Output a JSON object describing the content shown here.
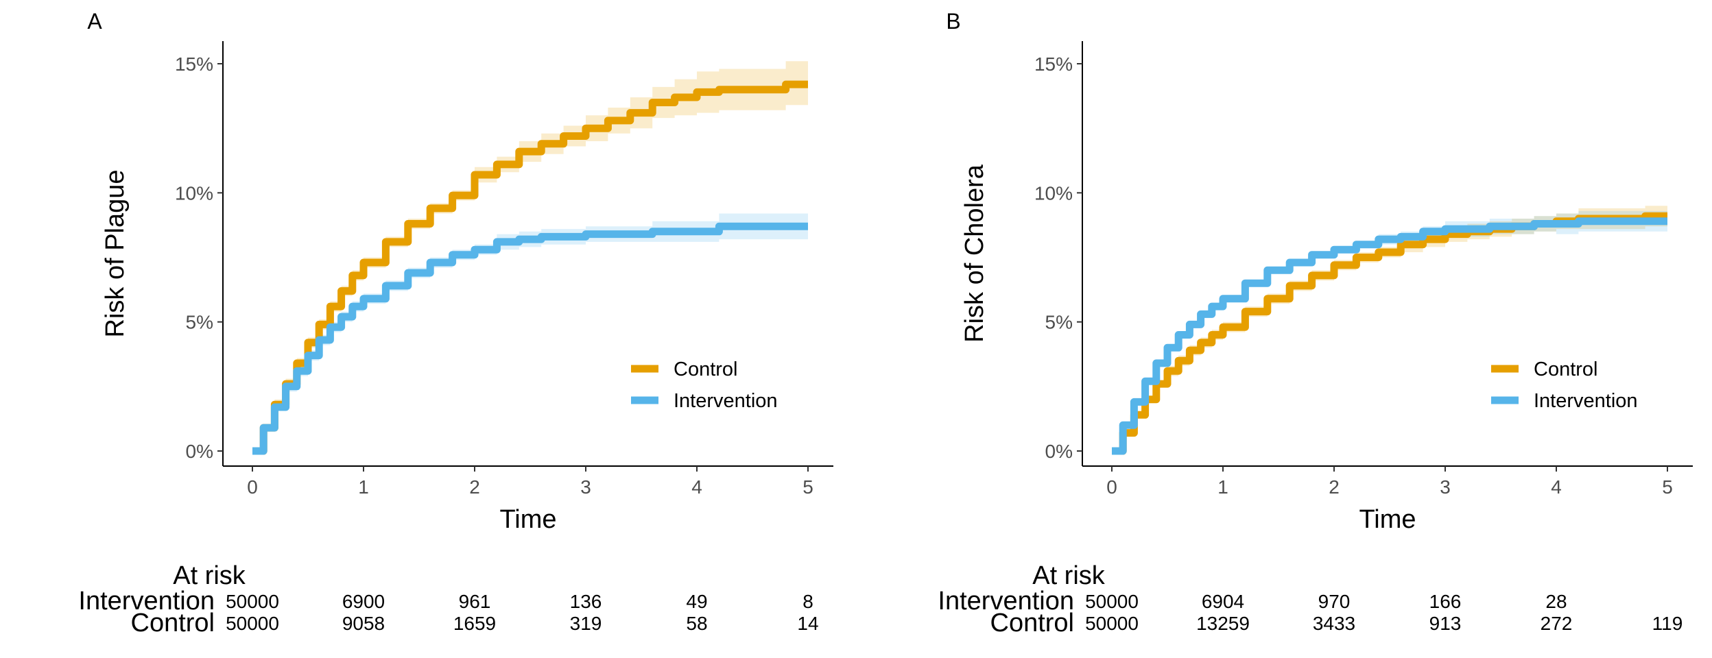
{
  "colors": {
    "control": "#E69F00",
    "intervention": "#56B4E9",
    "axis": "#000000",
    "tick_text": "#4D4D4D"
  },
  "chart_data": [
    {
      "type": "line",
      "panel_label": "A",
      "xlabel": "Time",
      "ylabel": "Risk of Plague",
      "xlim": [
        0,
        5
      ],
      "ylim": [
        0,
        0.16
      ],
      "x_ticks": [
        0,
        1,
        2,
        3,
        4,
        5
      ],
      "y_ticks": [
        0,
        0.05,
        0.1,
        0.15
      ],
      "x_tick_labels": [
        "0",
        "1",
        "2",
        "3",
        "4",
        "5"
      ],
      "y_tick_labels": [
        "0%",
        "5%",
        "10%",
        "15%"
      ],
      "legend": [
        "Control",
        "Intervention"
      ],
      "legend_position": "bottom-right",
      "series": [
        {
          "name": "Control",
          "color": "#E69F00",
          "x": [
            0,
            0.1,
            0.2,
            0.3,
            0.4,
            0.5,
            0.6,
            0.7,
            0.8,
            0.9,
            1.0,
            1.2,
            1.4,
            1.6,
            1.8,
            2.0,
            2.2,
            2.4,
            2.6,
            2.8,
            3.0,
            3.2,
            3.4,
            3.6,
            3.8,
            4.0,
            4.2,
            4.5,
            4.8,
            5.0
          ],
          "y": [
            0,
            0.009,
            0.018,
            0.026,
            0.034,
            0.042,
            0.049,
            0.056,
            0.062,
            0.068,
            0.073,
            0.081,
            0.088,
            0.094,
            0.099,
            0.107,
            0.111,
            0.116,
            0.119,
            0.122,
            0.125,
            0.128,
            0.131,
            0.135,
            0.137,
            0.139,
            0.14,
            0.14,
            0.142,
            0.142
          ],
          "ci_lower": [
            0,
            0.008,
            0.016,
            0.024,
            0.032,
            0.04,
            0.047,
            0.054,
            0.06,
            0.066,
            0.071,
            0.079,
            0.086,
            0.092,
            0.097,
            0.104,
            0.108,
            0.112,
            0.115,
            0.118,
            0.12,
            0.123,
            0.125,
            0.129,
            0.13,
            0.131,
            0.132,
            0.132,
            0.134,
            0.134
          ],
          "ci_upper": [
            0,
            0.01,
            0.02,
            0.028,
            0.036,
            0.044,
            0.051,
            0.058,
            0.064,
            0.07,
            0.075,
            0.083,
            0.09,
            0.096,
            0.101,
            0.11,
            0.114,
            0.12,
            0.123,
            0.126,
            0.13,
            0.133,
            0.137,
            0.141,
            0.144,
            0.147,
            0.148,
            0.148,
            0.151,
            0.151
          ]
        },
        {
          "name": "Intervention",
          "color": "#56B4E9",
          "x": [
            0,
            0.1,
            0.2,
            0.3,
            0.4,
            0.5,
            0.6,
            0.7,
            0.8,
            0.9,
            1.0,
            1.2,
            1.4,
            1.6,
            1.8,
            2.0,
            2.2,
            2.4,
            2.6,
            2.8,
            3.0,
            3.2,
            3.4,
            3.6,
            3.8,
            4.0,
            4.2,
            4.5,
            4.8,
            5.0
          ],
          "y": [
            0,
            0.009,
            0.017,
            0.025,
            0.031,
            0.037,
            0.043,
            0.048,
            0.052,
            0.056,
            0.059,
            0.064,
            0.069,
            0.073,
            0.076,
            0.078,
            0.081,
            0.082,
            0.083,
            0.083,
            0.084,
            0.084,
            0.084,
            0.085,
            0.085,
            0.085,
            0.087,
            0.087,
            0.087,
            0.087
          ],
          "ci_lower": [
            0,
            0.008,
            0.016,
            0.023,
            0.029,
            0.035,
            0.041,
            0.046,
            0.05,
            0.054,
            0.057,
            0.062,
            0.067,
            0.071,
            0.074,
            0.076,
            0.078,
            0.079,
            0.08,
            0.08,
            0.081,
            0.081,
            0.081,
            0.081,
            0.081,
            0.081,
            0.082,
            0.082,
            0.082,
            0.082
          ],
          "ci_upper": [
            0,
            0.01,
            0.018,
            0.027,
            0.033,
            0.039,
            0.045,
            0.05,
            0.054,
            0.058,
            0.061,
            0.066,
            0.071,
            0.075,
            0.078,
            0.08,
            0.084,
            0.085,
            0.086,
            0.086,
            0.087,
            0.087,
            0.087,
            0.089,
            0.089,
            0.089,
            0.092,
            0.092,
            0.092,
            0.092
          ]
        }
      ],
      "at_risk": {
        "title": "At risk",
        "times": [
          0,
          1,
          2,
          3,
          4,
          5
        ],
        "rows": [
          {
            "group": "Intervention",
            "counts": [
              "50000",
              "6900",
              "961",
              "136",
              "49",
              "8"
            ]
          },
          {
            "group": "Control",
            "counts": [
              "50000",
              "9058",
              "1659",
              "319",
              "58",
              "14"
            ]
          }
        ]
      }
    },
    {
      "type": "line",
      "panel_label": "B",
      "xlabel": "Time",
      "ylabel": "Risk of Cholera",
      "xlim": [
        0,
        5
      ],
      "ylim": [
        0,
        0.16
      ],
      "x_ticks": [
        0,
        1,
        2,
        3,
        4,
        5
      ],
      "y_ticks": [
        0,
        0.05,
        0.1,
        0.15
      ],
      "x_tick_labels": [
        "0",
        "1",
        "2",
        "3",
        "4",
        "5"
      ],
      "y_tick_labels": [
        "0%",
        "5%",
        "10%",
        "15%"
      ],
      "legend": [
        "Control",
        "Intervention"
      ],
      "legend_position": "bottom-right",
      "series": [
        {
          "name": "Control",
          "color": "#E69F00",
          "x": [
            0,
            0.1,
            0.2,
            0.3,
            0.4,
            0.5,
            0.6,
            0.7,
            0.8,
            0.9,
            1.0,
            1.2,
            1.4,
            1.6,
            1.8,
            2.0,
            2.2,
            2.4,
            2.6,
            2.8,
            3.0,
            3.2,
            3.4,
            3.6,
            3.8,
            4.0,
            4.2,
            4.5,
            4.8,
            5.0
          ],
          "y": [
            0,
            0.007,
            0.014,
            0.02,
            0.026,
            0.031,
            0.035,
            0.039,
            0.042,
            0.045,
            0.048,
            0.054,
            0.059,
            0.064,
            0.068,
            0.072,
            0.075,
            0.077,
            0.08,
            0.082,
            0.084,
            0.085,
            0.086,
            0.087,
            0.088,
            0.089,
            0.09,
            0.09,
            0.091,
            0.091
          ],
          "ci_lower": [
            0,
            0.006,
            0.013,
            0.019,
            0.025,
            0.029,
            0.033,
            0.037,
            0.04,
            0.043,
            0.046,
            0.052,
            0.057,
            0.062,
            0.066,
            0.07,
            0.073,
            0.075,
            0.077,
            0.079,
            0.081,
            0.082,
            0.083,
            0.084,
            0.085,
            0.086,
            0.086,
            0.086,
            0.087,
            0.087
          ],
          "ci_upper": [
            0,
            0.008,
            0.015,
            0.021,
            0.027,
            0.033,
            0.037,
            0.041,
            0.044,
            0.047,
            0.05,
            0.056,
            0.061,
            0.066,
            0.07,
            0.074,
            0.077,
            0.079,
            0.083,
            0.085,
            0.087,
            0.088,
            0.089,
            0.09,
            0.091,
            0.092,
            0.094,
            0.094,
            0.095,
            0.095
          ]
        },
        {
          "name": "Intervention",
          "color": "#56B4E9",
          "x": [
            0,
            0.1,
            0.2,
            0.3,
            0.4,
            0.5,
            0.6,
            0.7,
            0.8,
            0.9,
            1.0,
            1.2,
            1.4,
            1.6,
            1.8,
            2.0,
            2.2,
            2.4,
            2.6,
            2.8,
            3.0,
            3.2,
            3.4,
            3.6,
            3.8,
            4.0,
            4.2,
            4.5,
            4.8,
            5.0
          ],
          "y": [
            0,
            0.01,
            0.019,
            0.027,
            0.034,
            0.04,
            0.045,
            0.049,
            0.053,
            0.056,
            0.059,
            0.065,
            0.07,
            0.073,
            0.076,
            0.078,
            0.08,
            0.082,
            0.083,
            0.085,
            0.086,
            0.086,
            0.087,
            0.087,
            0.088,
            0.088,
            0.089,
            0.089,
            0.089,
            0.089
          ],
          "ci_lower": [
            0,
            0.009,
            0.018,
            0.026,
            0.033,
            0.039,
            0.044,
            0.048,
            0.052,
            0.055,
            0.058,
            0.064,
            0.069,
            0.072,
            0.075,
            0.077,
            0.079,
            0.08,
            0.081,
            0.083,
            0.083,
            0.083,
            0.084,
            0.084,
            0.085,
            0.084,
            0.085,
            0.085,
            0.085,
            0.085
          ],
          "ci_upper": [
            0,
            0.011,
            0.02,
            0.028,
            0.035,
            0.041,
            0.046,
            0.05,
            0.054,
            0.057,
            0.06,
            0.066,
            0.071,
            0.074,
            0.077,
            0.079,
            0.081,
            0.084,
            0.085,
            0.087,
            0.089,
            0.089,
            0.09,
            0.09,
            0.091,
            0.092,
            0.093,
            0.093,
            0.093,
            0.093
          ]
        }
      ],
      "at_risk": {
        "title": "At risk",
        "times": [
          0,
          1,
          2,
          3,
          4,
          5
        ],
        "rows": [
          {
            "group": "Intervention",
            "counts": [
              "50000",
              "6904",
              "970",
              "166",
              "28",
              ""
            ]
          },
          {
            "group": "Control",
            "counts": [
              "50000",
              "13259",
              "3433",
              "913",
              "272",
              "119"
            ]
          }
        ]
      }
    }
  ]
}
